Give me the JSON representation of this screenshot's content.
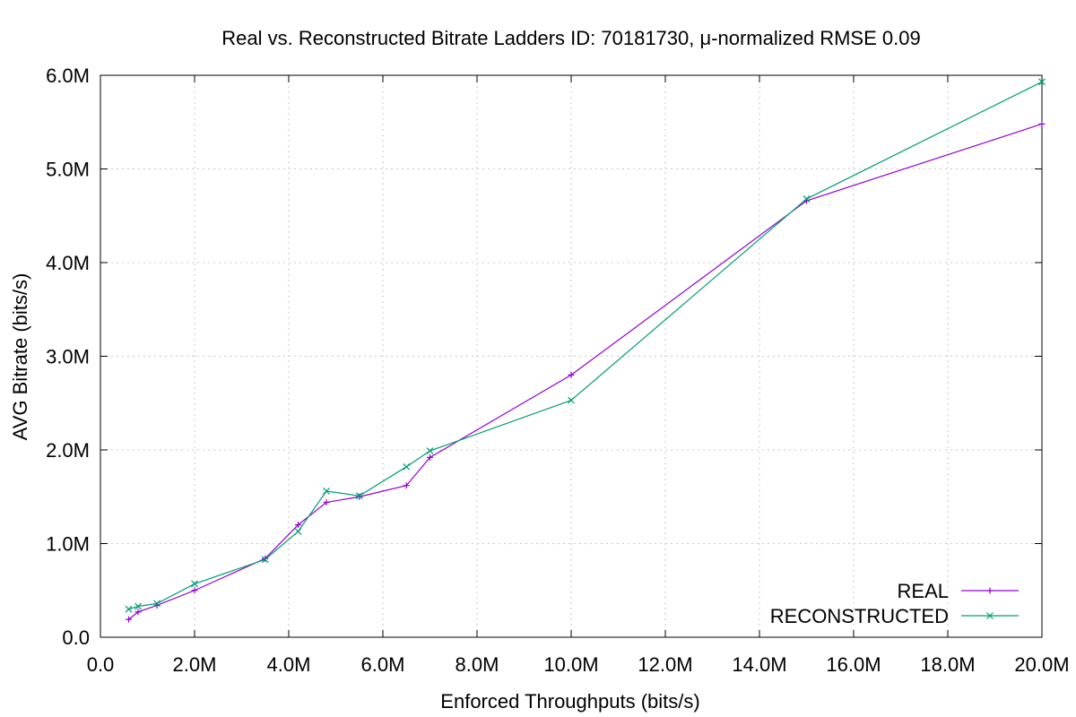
{
  "chart_data": {
    "type": "line",
    "title": "Real vs. Reconstructed Bitrate Ladders ID: 70181730, μ-normalized RMSE 0.09",
    "xlabel": "Enforced Throughputs (bits/s)",
    "ylabel": "AVG Bitrate (bits/s)",
    "xlim": [
      0,
      20000000
    ],
    "ylim": [
      0,
      6000000
    ],
    "x_ticks": [
      {
        "value": 0,
        "label": "0.0"
      },
      {
        "value": 2000000,
        "label": "2.0M"
      },
      {
        "value": 4000000,
        "label": "4.0M"
      },
      {
        "value": 6000000,
        "label": "6.0M"
      },
      {
        "value": 8000000,
        "label": "8.0M"
      },
      {
        "value": 10000000,
        "label": "10.0M"
      },
      {
        "value": 12000000,
        "label": "12.0M"
      },
      {
        "value": 14000000,
        "label": "14.0M"
      },
      {
        "value": 16000000,
        "label": "16.0M"
      },
      {
        "value": 18000000,
        "label": "18.0M"
      },
      {
        "value": 20000000,
        "label": "20.0M"
      }
    ],
    "y_ticks": [
      {
        "value": 0,
        "label": "0.0"
      },
      {
        "value": 1000000,
        "label": "1.0M"
      },
      {
        "value": 2000000,
        "label": "2.0M"
      },
      {
        "value": 3000000,
        "label": "3.0M"
      },
      {
        "value": 4000000,
        "label": "4.0M"
      },
      {
        "value": 5000000,
        "label": "5.0M"
      },
      {
        "value": 6000000,
        "label": "6.0M"
      }
    ],
    "grid": true,
    "legend_position": "bottom-right",
    "series": [
      {
        "name": "REAL",
        "color": "#9400d3",
        "marker": "plus",
        "x": [
          600000,
          800000,
          1200000,
          2000000,
          3500000,
          4200000,
          4800000,
          5500000,
          6500000,
          7000000,
          10000000,
          15000000,
          20000000
        ],
        "y": [
          190000,
          270000,
          340000,
          500000,
          840000,
          1200000,
          1440000,
          1500000,
          1620000,
          1920000,
          2800000,
          4660000,
          5480000
        ]
      },
      {
        "name": "RECONSTRUCTED",
        "color": "#009e73",
        "marker": "cross",
        "x": [
          600000,
          800000,
          1200000,
          2000000,
          3500000,
          4200000,
          4800000,
          5500000,
          6500000,
          7000000,
          10000000,
          15000000,
          20000000
        ],
        "y": [
          300000,
          330000,
          360000,
          570000,
          830000,
          1130000,
          1560000,
          1510000,
          1820000,
          1990000,
          2530000,
          4680000,
          5930000
        ]
      }
    ]
  }
}
